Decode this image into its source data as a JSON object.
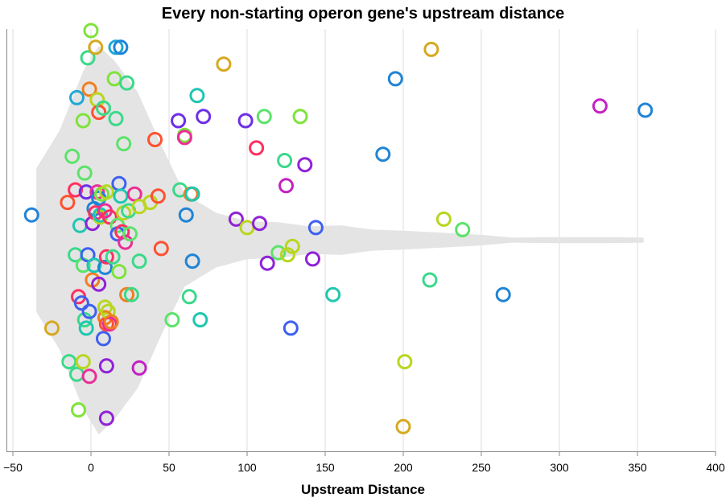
{
  "chart_data": {
    "type": "scatter",
    "title": "Every non-starting operon gene's upstream distance",
    "xlabel": "Upstream Distance",
    "ylabel": "",
    "xlim": [
      -50,
      400
    ],
    "x_ticks": [
      -50,
      0,
      50,
      100,
      150,
      200,
      250,
      300,
      350,
      400
    ],
    "x_tick_labels": [
      "−50",
      "0",
      "50",
      "100",
      "150",
      "200",
      "250",
      "300",
      "350",
      "400"
    ],
    "grid": true,
    "jitter_axis": "y",
    "density": [
      {
        "x": -35,
        "w": 0.34
      },
      {
        "x": -20,
        "w": 0.52
      },
      {
        "x": -5,
        "w": 0.8
      },
      {
        "x": 5,
        "w": 0.92
      },
      {
        "x": 15,
        "w": 0.85
      },
      {
        "x": 30,
        "w": 0.7
      },
      {
        "x": 45,
        "w": 0.45
      },
      {
        "x": 60,
        "w": 0.22
      },
      {
        "x": 80,
        "w": 0.13
      },
      {
        "x": 100,
        "w": 0.09
      },
      {
        "x": 120,
        "w": 0.085
      },
      {
        "x": 140,
        "w": 0.065
      },
      {
        "x": 160,
        "w": 0.07
      },
      {
        "x": 180,
        "w": 0.05
      },
      {
        "x": 200,
        "w": 0.045
      },
      {
        "x": 225,
        "w": 0.035
      },
      {
        "x": 250,
        "w": 0.025
      },
      {
        "x": 270,
        "w": 0.012
      },
      {
        "x": 300,
        "w": 0.014
      },
      {
        "x": 330,
        "w": 0.014
      },
      {
        "x": 354,
        "w": 0.012
      }
    ],
    "points": [
      {
        "x": -38,
        "y": 0.12,
        "color": "#1f84d6"
      },
      {
        "x": -25,
        "y": -0.42,
        "color": "#d6a91f"
      },
      {
        "x": -15,
        "y": 0.18,
        "color": "#ff5030"
      },
      {
        "x": -14,
        "y": -0.58,
        "color": "#3bd98a"
      },
      {
        "x": -12,
        "y": 0.4,
        "color": "#5ce36a"
      },
      {
        "x": -10,
        "y": -0.07,
        "color": "#3bd98a"
      },
      {
        "x": -10,
        "y": 0.24,
        "color": "#ff3060"
      },
      {
        "x": -9,
        "y": 0.68,
        "color": "#1fa8d6"
      },
      {
        "x": -9,
        "y": -0.64,
        "color": "#3bd98a"
      },
      {
        "x": -8,
        "y": -0.81,
        "color": "#7ee33b"
      },
      {
        "x": -8,
        "y": -0.27,
        "color": "#ff3060"
      },
      {
        "x": -7,
        "y": 0.07,
        "color": "#20c6b0"
      },
      {
        "x": -6,
        "y": -0.3,
        "color": "#3e60f0"
      },
      {
        "x": -5,
        "y": -0.58,
        "color": "#b8d61f"
      },
      {
        "x": -5,
        "y": 0.57,
        "color": "#7ee33b"
      },
      {
        "x": -5,
        "y": -0.12,
        "color": "#5ce36a"
      },
      {
        "x": -4,
        "y": 0.32,
        "color": "#5ce36a"
      },
      {
        "x": -4,
        "y": -0.38,
        "color": "#3bd98a"
      },
      {
        "x": -3,
        "y": 0.23,
        "color": "#6e2ee6"
      },
      {
        "x": -3,
        "y": -0.42,
        "color": "#20c6b0"
      },
      {
        "x": -2,
        "y": 0.87,
        "color": "#3bd98a"
      },
      {
        "x": -2,
        "y": -0.07,
        "color": "#3e60f0"
      },
      {
        "x": -1,
        "y": 0.72,
        "color": "#f07e1f"
      },
      {
        "x": -1,
        "y": -0.65,
        "color": "#ea2e96"
      },
      {
        "x": -1,
        "y": -0.34,
        "color": "#3e60f0"
      },
      {
        "x": 0,
        "y": 1.0,
        "color": "#7ee33b"
      },
      {
        "x": 1,
        "y": 0.08,
        "color": "#9022d6"
      },
      {
        "x": 1,
        "y": -0.19,
        "color": "#f07e1f"
      },
      {
        "x": 2,
        "y": 0.15,
        "color": "#1f84d6"
      },
      {
        "x": 2,
        "y": -0.12,
        "color": "#20c6b0"
      },
      {
        "x": 3,
        "y": 0.13,
        "color": "#ff3060"
      },
      {
        "x": 3,
        "y": 0.92,
        "color": "#d6a91f"
      },
      {
        "x": 4,
        "y": 0.23,
        "color": "#ea2e96"
      },
      {
        "x": 4,
        "y": 0.67,
        "color": "#b8d61f"
      },
      {
        "x": 5,
        "y": 0.61,
        "color": "#ff5030"
      },
      {
        "x": 5,
        "y": 0.2,
        "color": "#1f84d6"
      },
      {
        "x": 5,
        "y": -0.21,
        "color": "#9022d6"
      },
      {
        "x": 6,
        "y": 0.11,
        "color": "#b8d61f"
      },
      {
        "x": 6,
        "y": 0.12,
        "color": "#20c6b0"
      },
      {
        "x": 7,
        "y": 0.22,
        "color": "#7ee33b"
      },
      {
        "x": 8,
        "y": 0.63,
        "color": "#3bd98a"
      },
      {
        "x": 8,
        "y": -0.47,
        "color": "#3e60f0"
      },
      {
        "x": 9,
        "y": -0.32,
        "color": "#b8d61f"
      },
      {
        "x": 9,
        "y": -0.37,
        "color": "#f07e1f"
      },
      {
        "x": 9,
        "y": 0.14,
        "color": "#ea2e96"
      },
      {
        "x": 9,
        "y": -0.13,
        "color": "#1f84d6"
      },
      {
        "x": 10,
        "y": -0.4,
        "color": "#ff5030"
      },
      {
        "x": 10,
        "y": 0.23,
        "color": "#b8d61f"
      },
      {
        "x": 10,
        "y": -0.08,
        "color": "#ff3060"
      },
      {
        "x": 10,
        "y": -0.6,
        "color": "#9022d6"
      },
      {
        "x": 10,
        "y": -0.85,
        "color": "#9022d6"
      },
      {
        "x": 11,
        "y": -0.34,
        "color": "#b8d61f"
      },
      {
        "x": 12,
        "y": 0.11,
        "color": "#ff3060"
      },
      {
        "x": 12,
        "y": -0.4,
        "color": "#ea2e96"
      },
      {
        "x": 13,
        "y": -0.39,
        "color": "#f07e1f"
      },
      {
        "x": 14,
        "y": -0.08,
        "color": "#3bd98a"
      },
      {
        "x": 15,
        "y": 0.77,
        "color": "#7ee33b"
      },
      {
        "x": 16,
        "y": 0.92,
        "color": "#1fa8d6"
      },
      {
        "x": 16,
        "y": 0.58,
        "color": "#3bd98a"
      },
      {
        "x": 17,
        "y": 0.07,
        "color": "#5ce36a"
      },
      {
        "x": 17,
        "y": 0.03,
        "color": "#3e60f0"
      },
      {
        "x": 18,
        "y": 0.27,
        "color": "#3e60f0"
      },
      {
        "x": 18,
        "y": -0.15,
        "color": "#7ee33b"
      },
      {
        "x": 19,
        "y": 0.92,
        "color": "#1f84d6"
      },
      {
        "x": 19,
        "y": 0.21,
        "color": "#20c6b0"
      },
      {
        "x": 20,
        "y": 0.04,
        "color": "#ff3060"
      },
      {
        "x": 21,
        "y": 0.13,
        "color": "#b8d61f"
      },
      {
        "x": 21,
        "y": 0.46,
        "color": "#5ce36a"
      },
      {
        "x": 22,
        "y": -0.01,
        "color": "#ea2e96"
      },
      {
        "x": 23,
        "y": -0.26,
        "color": "#f07e1f"
      },
      {
        "x": 23,
        "y": 0.75,
        "color": "#3bd98a"
      },
      {
        "x": 24,
        "y": 0.14,
        "color": "#3bd98a"
      },
      {
        "x": 25,
        "y": 0.03,
        "color": "#5ce36a"
      },
      {
        "x": 26,
        "y": -0.26,
        "color": "#3bd98a"
      },
      {
        "x": 28,
        "y": 0.22,
        "color": "#ea2e96"
      },
      {
        "x": 31,
        "y": 0.16,
        "color": "#b8d61f"
      },
      {
        "x": 31,
        "y": -0.1,
        "color": "#3bd98a"
      },
      {
        "x": 31,
        "y": -0.61,
        "color": "#c322c3"
      },
      {
        "x": 38,
        "y": 0.18,
        "color": "#b8d61f"
      },
      {
        "x": 41,
        "y": 0.48,
        "color": "#ff5030"
      },
      {
        "x": 43,
        "y": 0.21,
        "color": "#ff5030"
      },
      {
        "x": 45,
        "y": -0.04,
        "color": "#ff5030"
      },
      {
        "x": 52,
        "y": -0.38,
        "color": "#5ce36a"
      },
      {
        "x": 56,
        "y": 0.57,
        "color": "#6e2ee6"
      },
      {
        "x": 57,
        "y": 0.24,
        "color": "#3bd98a"
      },
      {
        "x": 60,
        "y": 0.5,
        "color": "#7ee33b"
      },
      {
        "x": 60,
        "y": 0.49,
        "color": "#ea2e96"
      },
      {
        "x": 61,
        "y": 0.12,
        "color": "#1f84d6"
      },
      {
        "x": 63,
        "y": -0.27,
        "color": "#3bd98a"
      },
      {
        "x": 64,
        "y": 0.22,
        "color": "#f07e1f"
      },
      {
        "x": 65,
        "y": -0.1,
        "color": "#1f84d6"
      },
      {
        "x": 65,
        "y": 0.22,
        "color": "#20c6b0"
      },
      {
        "x": 68,
        "y": 0.69,
        "color": "#20c6b0"
      },
      {
        "x": 70,
        "y": -0.38,
        "color": "#20c6b0"
      },
      {
        "x": 72,
        "y": 0.59,
        "color": "#6e2ee6"
      },
      {
        "x": 85,
        "y": 0.84,
        "color": "#d6a91f"
      },
      {
        "x": 93,
        "y": 0.1,
        "color": "#9022d6"
      },
      {
        "x": 99,
        "y": 0.57,
        "color": "#6e2ee6"
      },
      {
        "x": 100,
        "y": 0.06,
        "color": "#b8d61f"
      },
      {
        "x": 106,
        "y": 0.44,
        "color": "#ff3060"
      },
      {
        "x": 108,
        "y": 0.08,
        "color": "#9022d6"
      },
      {
        "x": 111,
        "y": 0.59,
        "color": "#5ce36a"
      },
      {
        "x": 113,
        "y": -0.11,
        "color": "#9022d6"
      },
      {
        "x": 120,
        "y": -0.06,
        "color": "#5ce36a"
      },
      {
        "x": 124,
        "y": 0.38,
        "color": "#3bd98a"
      },
      {
        "x": 125,
        "y": 0.26,
        "color": "#c322c3"
      },
      {
        "x": 126,
        "y": -0.07,
        "color": "#b8d61f"
      },
      {
        "x": 128,
        "y": -0.42,
        "color": "#3e60f0"
      },
      {
        "x": 129,
        "y": -0.03,
        "color": "#b8d61f"
      },
      {
        "x": 134,
        "y": 0.59,
        "color": "#7ee33b"
      },
      {
        "x": 137,
        "y": 0.36,
        "color": "#9022d6"
      },
      {
        "x": 142,
        "y": -0.09,
        "color": "#9022d6"
      },
      {
        "x": 144,
        "y": 0.06,
        "color": "#3e60f0"
      },
      {
        "x": 155,
        "y": -0.26,
        "color": "#20c6b0"
      },
      {
        "x": 187,
        "y": 0.41,
        "color": "#1f84d6"
      },
      {
        "x": 195,
        "y": 0.77,
        "color": "#1f84d6"
      },
      {
        "x": 200,
        "y": -0.89,
        "color": "#d6a91f"
      },
      {
        "x": 201,
        "y": -0.58,
        "color": "#b8d61f"
      },
      {
        "x": 217,
        "y": -0.19,
        "color": "#3bd98a"
      },
      {
        "x": 218,
        "y": 0.91,
        "color": "#d6a91f"
      },
      {
        "x": 226,
        "y": 0.1,
        "color": "#b8d61f"
      },
      {
        "x": 238,
        "y": 0.05,
        "color": "#5ce36a"
      },
      {
        "x": 264,
        "y": -0.26,
        "color": "#1f84d6"
      },
      {
        "x": 326,
        "y": 0.64,
        "color": "#c322c3"
      },
      {
        "x": 355,
        "y": 0.62,
        "color": "#1f84d6"
      }
    ]
  }
}
